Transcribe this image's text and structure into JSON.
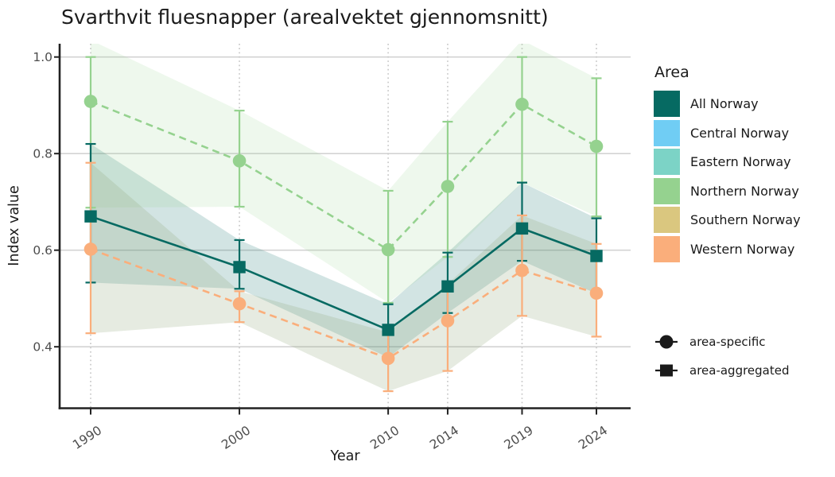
{
  "title": "Svarthvit fluesnapper (arealvektet gjennomsnitt)",
  "legend": {
    "area_title": "Area",
    "areas": [
      {
        "label": "All Norway",
        "color": "#066A62"
      },
      {
        "label": "Central Norway",
        "color": "#70CDF4"
      },
      {
        "label": "Eastern Norway",
        "color": "#7CD3C6"
      },
      {
        "label": "Northern Norway",
        "color": "#95D28F"
      },
      {
        "label": "Southern Norway",
        "color": "#DAC77F"
      },
      {
        "label": "Western Norway",
        "color": "#FAAE7B"
      }
    ],
    "shape_items": [
      {
        "label": "area-specific",
        "shape": "circle"
      },
      {
        "label": "area-aggregated",
        "shape": "square"
      }
    ]
  },
  "chart_data": {
    "type": "line",
    "title": "Svarthvit fluesnapper (arealvektet gjennomsnitt)",
    "xlabel": "Year",
    "ylabel": "Index value",
    "x": [
      1990,
      2000,
      2010,
      2014,
      2019,
      2024
    ],
    "x_tick_labels": [
      "1990",
      "2000",
      "2010",
      "2014",
      "2019",
      "2024"
    ],
    "y_ticks": [
      0.4,
      0.6,
      0.8,
      1.0
    ],
    "ylim": [
      0.27,
      1.03
    ],
    "grid": {
      "horizontal": "solid",
      "vertical": "dotted-at-ticks"
    },
    "legend_position": "right",
    "series": [
      {
        "name": "All Norway",
        "aggregation": "area-aggregated",
        "marker": "square",
        "line_style": "solid",
        "color": "#066A62",
        "ribbon_color": "rgba(6,106,98,0.18)",
        "values": [
          0.67,
          0.565,
          0.435,
          0.525,
          0.645,
          0.588
        ],
        "ci_low": [
          0.533,
          0.52,
          0.378,
          0.47,
          0.578,
          0.51
        ],
        "ci_high": [
          0.82,
          0.621,
          0.488,
          0.595,
          0.74,
          0.666
        ]
      },
      {
        "name": "Northern Norway",
        "aggregation": "area-specific",
        "marker": "circle",
        "line_style": "dashed",
        "color": "#95D28F",
        "ribbon_color": "rgba(149,210,143,0.16)",
        "values": [
          0.908,
          0.785,
          0.601,
          0.732,
          0.902,
          0.815
        ],
        "ci_low": [
          0.688,
          0.69,
          0.491,
          0.586,
          0.74,
          0.67
        ],
        "ci_high": [
          1.0,
          0.889,
          0.723,
          0.866,
          1.0,
          0.956
        ]
      },
      {
        "name": "Western Norway",
        "aggregation": "area-specific",
        "marker": "circle",
        "line_style": "dashed",
        "color": "#FAAE7B",
        "ribbon_color": "rgba(141,162,118,0.22)",
        "values": [
          0.602,
          0.489,
          0.376,
          0.454,
          0.558,
          0.511
        ],
        "ci_low": [
          0.428,
          0.451,
          0.308,
          0.35,
          0.464,
          0.421
        ],
        "ci_high": [
          0.781,
          0.515,
          0.43,
          0.53,
          0.672,
          0.613
        ]
      }
    ]
  }
}
